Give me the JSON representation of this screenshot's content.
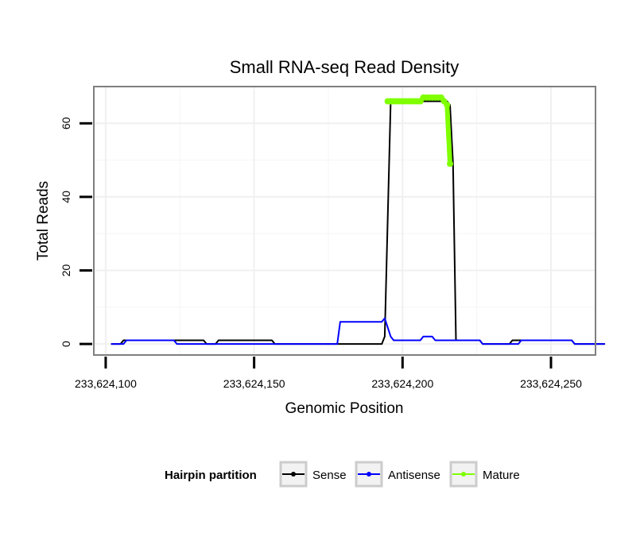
{
  "chart_data": {
    "type": "line",
    "title": "Small RNA-seq Read Density",
    "xlabel": "Genomic Position",
    "ylabel": "Total Reads",
    "xlim": [
      233624096,
      233624265
    ],
    "ylim": [
      -3,
      70
    ],
    "x_ticks": [
      233624100,
      233624150,
      233624200,
      233624250
    ],
    "x_tick_labels": [
      "233,624,100",
      "233,624,150",
      "233,624,200",
      "233,624,250"
    ],
    "y_ticks": [
      0,
      20,
      40,
      60
    ],
    "y_tick_labels": [
      "0",
      "20",
      "40",
      "60"
    ],
    "grid": true,
    "legend": {
      "title": "Hairpin partition",
      "position": "bottom",
      "entries": [
        {
          "name": "Sense",
          "color": "#000000"
        },
        {
          "name": "Antisense",
          "color": "#0000ff"
        },
        {
          "name": "Mature",
          "color": "#7fff00"
        }
      ]
    },
    "series": [
      {
        "name": "Sense",
        "color": "#000000",
        "x": [
          233624102,
          233624105,
          233624106,
          233624118,
          233624119,
          233624133,
          233624134,
          233624137,
          233624138,
          233624156,
          233624157,
          233624193,
          233624194,
          233624196,
          233624215,
          233624216,
          233624217,
          233624218,
          233624226,
          233624227,
          233624236,
          233624237,
          233624257,
          233624258,
          233624268
        ],
        "y": [
          0,
          0,
          1,
          1,
          1,
          1,
          0,
          0,
          1,
          1,
          0,
          0,
          2,
          66,
          66,
          65,
          49,
          1,
          1,
          0,
          0,
          1,
          1,
          0,
          0
        ]
      },
      {
        "name": "Antisense",
        "color": "#0000ff",
        "x": [
          233624102,
          233624106,
          233624107,
          233624109,
          233624110,
          233624123,
          233624124,
          233624178,
          233624179,
          233624193,
          233624194,
          233624196,
          233624197,
          233624206,
          233624207,
          233624210,
          233624211,
          233624226,
          233624227,
          233624239,
          233624240,
          233624257,
          233624258,
          233624268
        ],
        "y": [
          0,
          0,
          1,
          1,
          1,
          1,
          0,
          0,
          6,
          6,
          7,
          2,
          1,
          1,
          2,
          2,
          1,
          1,
          0,
          0,
          1,
          1,
          0,
          0
        ]
      },
      {
        "name": "Mature",
        "color": "#7fff00",
        "x": [
          233624195,
          233624196,
          233624197,
          233624198,
          233624199,
          233624200,
          233624201,
          233624202,
          233624203,
          233624204,
          233624205,
          233624206,
          233624207,
          233624208,
          233624209,
          233624210,
          233624211,
          233624212,
          233624213,
          233624214,
          233624215,
          233624216
        ],
        "y": [
          66,
          66,
          66,
          66,
          66,
          66,
          66,
          66,
          66,
          66,
          66,
          66,
          67,
          67,
          67,
          67,
          67,
          67,
          67,
          66,
          65,
          49
        ]
      }
    ]
  }
}
